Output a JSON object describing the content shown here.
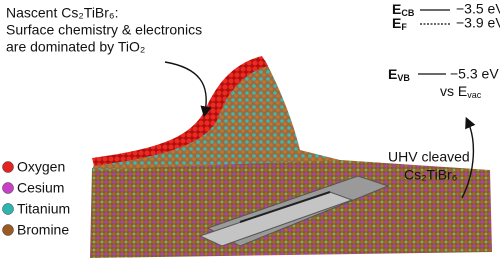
{
  "annotation": {
    "lines": [
      "Nascent Cs₂TiBr₆:",
      "Surface chemistry & electronics",
      "are dominated by TiO₂"
    ]
  },
  "energy_levels": [
    {
      "symbol": "E",
      "sub": "CB",
      "value": "−3.5 eV"
    },
    {
      "symbol": "E",
      "sub": "F",
      "value": "−3.9 eV"
    },
    {
      "symbol": "E",
      "sub": "VB",
      "value": "−5.3 eV"
    }
  ],
  "reference": {
    "text": "vs E",
    "sub": "vac"
  },
  "cleave_note": [
    "UHV cleaved",
    "Cs₂TiBr₆"
  ],
  "legend": [
    {
      "label": "Oxygen",
      "color": "#e3231f"
    },
    {
      "label": "Cesium",
      "color": "#c83fc8"
    },
    {
      "label": "Titanium",
      "color": "#2fb5b0"
    },
    {
      "label": "Bromine",
      "color": "#9a5a22"
    }
  ]
}
